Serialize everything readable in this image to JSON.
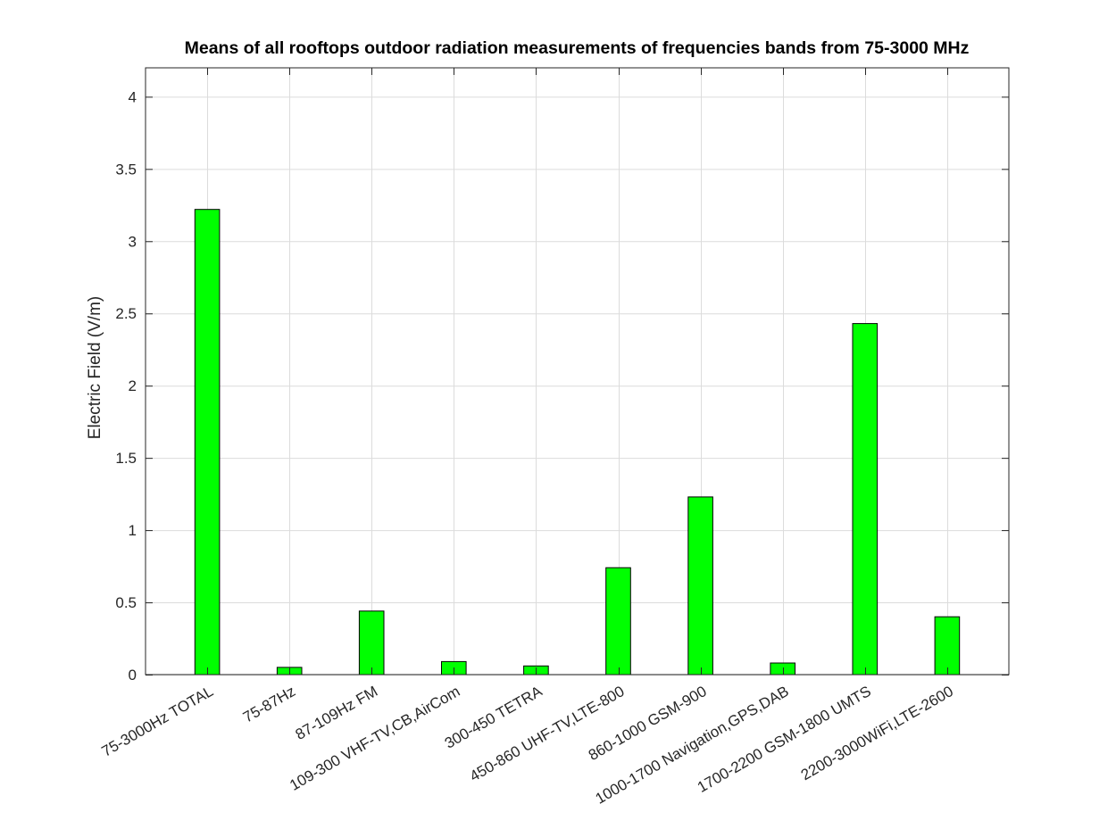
{
  "chart_data": {
    "type": "bar",
    "title": "Means of all rooftops outdoor radiation measurements of frequencies bands from 75-3000 MHz",
    "xlabel": "",
    "ylabel": "Electric Field (V/m)",
    "ylim": [
      0,
      4.2
    ],
    "yticks": [
      0,
      0.5,
      1,
      1.5,
      2,
      2.5,
      3,
      3.5,
      4
    ],
    "ytick_labels": [
      "0",
      "0.5",
      "1",
      "1.5",
      "2",
      "2.5",
      "3",
      "3.5",
      "4"
    ],
    "categories": [
      "75-3000Hz TOTAL",
      "75-87Hz",
      "87-109Hz FM",
      "109-300 VHF-TV,CB,AirCom",
      "300-450 TETRA",
      "450-860 UHF-TV,LTE-800",
      "860-1000 GSM-900",
      "1000-1700 Navigation,GPS,DAB",
      "1700-2200 GSM-1800 UMTS",
      "2200-3000WiFi,LTE-2600"
    ],
    "values": [
      3.22,
      0.05,
      0.44,
      0.09,
      0.06,
      0.74,
      1.23,
      0.08,
      2.43,
      0.4
    ],
    "bar_color": "#00ff00",
    "grid": true,
    "legend": "none"
  }
}
